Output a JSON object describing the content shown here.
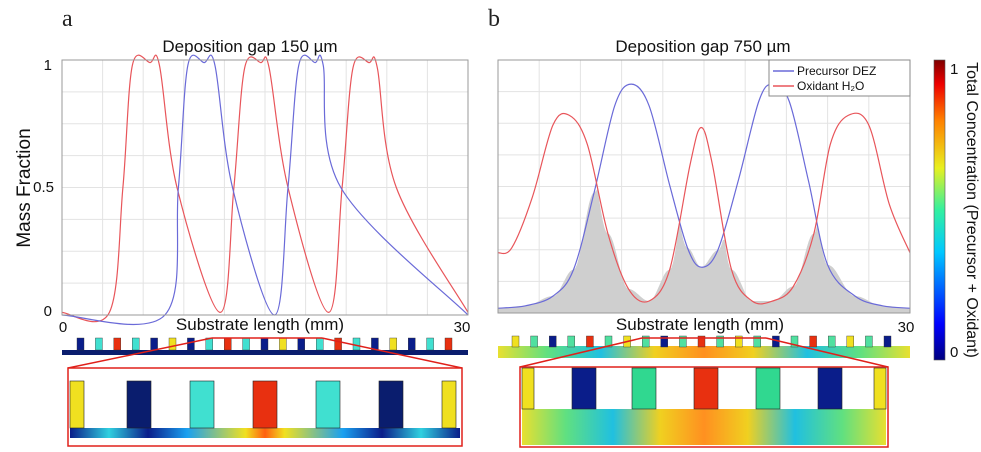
{
  "panels": [
    {
      "letter": "a",
      "title": "Deposition gap 150 µm",
      "ylabel": "Mass Fraction",
      "xlabel": "Substrate length (mm)",
      "x_tick_labels": [
        "0",
        "30"
      ],
      "y_tick_labels": [
        "0",
        "0.5",
        "1"
      ]
    },
    {
      "letter": "b",
      "title": "Deposition gap 750 µm",
      "xlabel": "Substrate length (mm)",
      "x_tick_labels": [
        "30"
      ],
      "legend": [
        "Precursor DEZ",
        "Oxidant H₂O"
      ]
    }
  ],
  "colorbar": {
    "label": "Total Concentration (Precursor + Oxidant)",
    "tick_labels": [
      "0",
      "1"
    ]
  },
  "colors": {
    "precursor": "#6a6ad8",
    "oxidant": "#e8555a",
    "overlap_fill": "#cfcfcf"
  },
  "chart_data": [
    {
      "type": "line",
      "title": "Deposition gap 150 µm",
      "xlabel": "Substrate length (mm)",
      "ylabel": "Mass Fraction",
      "xlim": [
        0,
        30
      ],
      "ylim": [
        0,
        1
      ],
      "grid": true,
      "series": [
        {
          "key": "oxidant",
          "x": [
            0,
            3.5,
            4.5,
            5.2,
            6.5,
            7.2,
            8.5,
            11.7,
            12.7,
            13.5,
            14.7,
            15.3,
            16.7,
            19.7,
            20.7,
            21.5,
            22.7,
            23.3,
            24.7,
            30
          ],
          "y": [
            0.01,
            0.01,
            0.5,
            0.98,
            0.99,
            0.98,
            0.5,
            0.01,
            0.5,
            0.97,
            0.99,
            0.97,
            0.5,
            0.01,
            0.5,
            0.97,
            0.99,
            0.97,
            0.5,
            0.01
          ]
        },
        {
          "key": "precursor",
          "x": [
            0,
            7.6,
            8.6,
            9.3,
            10.5,
            11.3,
            12.6,
            15.7,
            16.7,
            17.5,
            18.7,
            19.3,
            20.6,
            30
          ],
          "y": [
            0.0,
            0.0,
            0.5,
            0.98,
            0.99,
            0.98,
            0.5,
            0.0,
            0.5,
            0.98,
            0.99,
            0.98,
            0.5,
            0.0
          ]
        }
      ]
    },
    {
      "type": "line",
      "title": "Deposition gap 750 µm",
      "xlabel": "Substrate length (mm)",
      "xlim": [
        0,
        30
      ],
      "ylim": [
        0,
        1.05
      ],
      "grid": true,
      "legend_position": "top-right",
      "series": [
        {
          "name": "Precursor DEZ",
          "key": "precursor",
          "x": [
            0,
            2,
            4,
            5.5,
            7,
            8.5,
            9.7,
            11,
            12.5,
            13.8,
            14.8,
            16,
            17.5,
            19,
            20,
            21.2,
            22.6,
            24,
            26,
            28,
            30
          ],
          "y": [
            0.02,
            0.03,
            0.07,
            0.18,
            0.5,
            0.86,
            0.95,
            0.86,
            0.53,
            0.27,
            0.19,
            0.26,
            0.55,
            0.88,
            0.95,
            0.88,
            0.55,
            0.2,
            0.07,
            0.03,
            0.02
          ]
        },
        {
          "name": "Oxidant H₂O",
          "key": "oxidant",
          "x": [
            0,
            1,
            2.5,
            4,
            5.2,
            6.5,
            8,
            9.5,
            11,
            12.5,
            14,
            14.8,
            15.6,
            17,
            18.5,
            20,
            21.5,
            23,
            24.2,
            25.5,
            27,
            28.5,
            30
          ],
          "y": [
            0.25,
            0.27,
            0.48,
            0.78,
            0.82,
            0.7,
            0.33,
            0.1,
            0.05,
            0.18,
            0.62,
            0.77,
            0.62,
            0.18,
            0.05,
            0.05,
            0.11,
            0.33,
            0.7,
            0.82,
            0.78,
            0.45,
            0.25
          ]
        }
      ]
    }
  ]
}
